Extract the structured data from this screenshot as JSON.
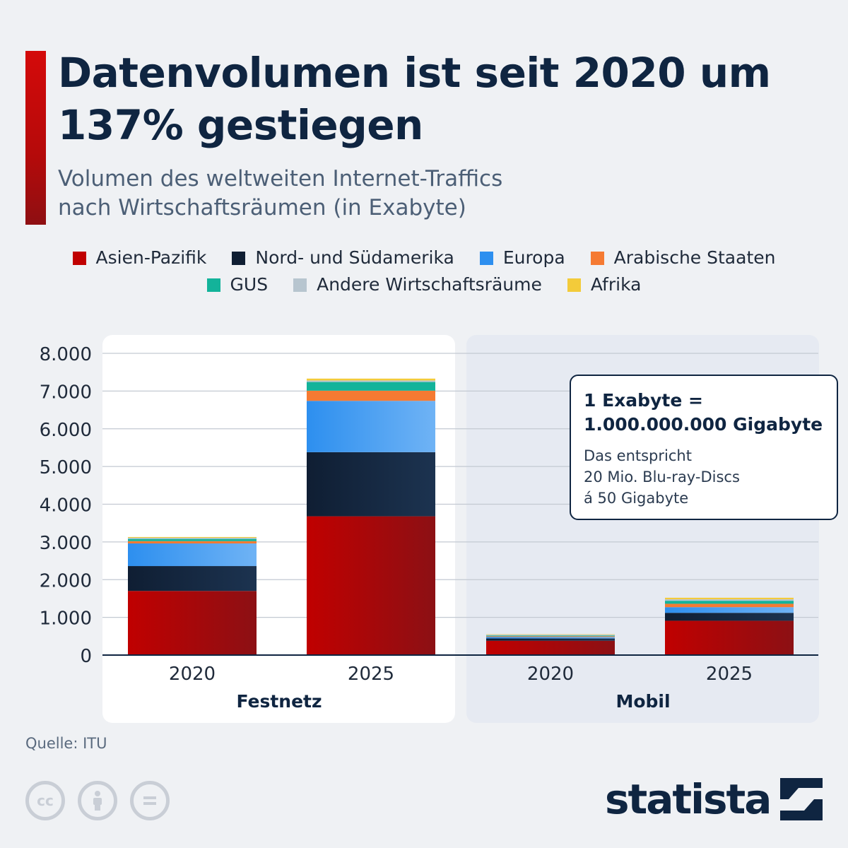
{
  "header": {
    "title": "Datenvolumen ist seit 2020 um 137% gestiegen",
    "subtitle_line1": "Volumen des weltweiten Internet-Traffics",
    "subtitle_line2": "nach Wirtschaftsräumen (in Exabyte)"
  },
  "legend": {
    "rows": [
      [
        {
          "label": "Asien-Pazifik",
          "color": "#c00000"
        },
        {
          "label": "Nord- und Südamerika",
          "color": "#0f1e33"
        },
        {
          "label": "Europa",
          "color": "#2d8fef"
        },
        {
          "label": "Arabische Staaten",
          "color": "#f57a32"
        }
      ],
      [
        {
          "label": "GUS",
          "color": "#13b39a"
        },
        {
          "label": "Andere Wirtschaftsräume",
          "color": "#b7c5cf"
        },
        {
          "label": "Afrika",
          "color": "#f3cb3a"
        }
      ]
    ]
  },
  "chart_data": {
    "type": "bar",
    "stacked": true,
    "ylim": [
      0,
      8000
    ],
    "yticks": [
      "0",
      "1.000",
      "2.000",
      "3.000",
      "4.000",
      "5.000",
      "6.000",
      "7.000",
      "8.000"
    ],
    "ytick_values": [
      0,
      1000,
      2000,
      3000,
      4000,
      5000,
      6000,
      7000,
      8000
    ],
    "grid": true,
    "groups": [
      {
        "label": "Festnetz",
        "categories": [
          "2020",
          "2025"
        ]
      },
      {
        "label": "Mobil",
        "categories": [
          "2020",
          "2025"
        ]
      }
    ],
    "categories": [
      "2020",
      "2025",
      "2020",
      "2025"
    ],
    "series": [
      {
        "name": "Asien-Pazifik",
        "color": "#c00000",
        "values": [
          1700,
          3680,
          380,
          910
        ]
      },
      {
        "name": "Nord- und Südamerika",
        "color": "#0f1e33",
        "values": [
          660,
          1700,
          60,
          210
        ]
      },
      {
        "name": "Europa",
        "color": "#2d8fef",
        "values": [
          600,
          1360,
          40,
          150
        ]
      },
      {
        "name": "Arabische Staaten",
        "color": "#f57a32",
        "values": [
          60,
          270,
          20,
          90
        ]
      },
      {
        "name": "GUS",
        "color": "#13b39a",
        "values": [
          60,
          230,
          20,
          80
        ]
      },
      {
        "name": "Andere Wirtschaftsräume",
        "color": "#b7c5cf",
        "values": [
          30,
          40,
          20,
          40
        ]
      },
      {
        "name": "Afrika",
        "color": "#f3cb3a",
        "values": [
          20,
          50,
          10,
          40
        ]
      }
    ]
  },
  "info_box": {
    "head_line1": "1 Exabyte =",
    "head_line2": "1.000.000.000 Gigabyte",
    "body_line1": "Das entspricht",
    "body_line2": "20 Mio. Blu-ray-Discs",
    "body_line3": "á 50 Gigabyte"
  },
  "source": "Quelle: ITU",
  "license_icons": [
    "cc-icon",
    "person-icon",
    "equals-icon"
  ],
  "brand": {
    "name": "statista"
  }
}
